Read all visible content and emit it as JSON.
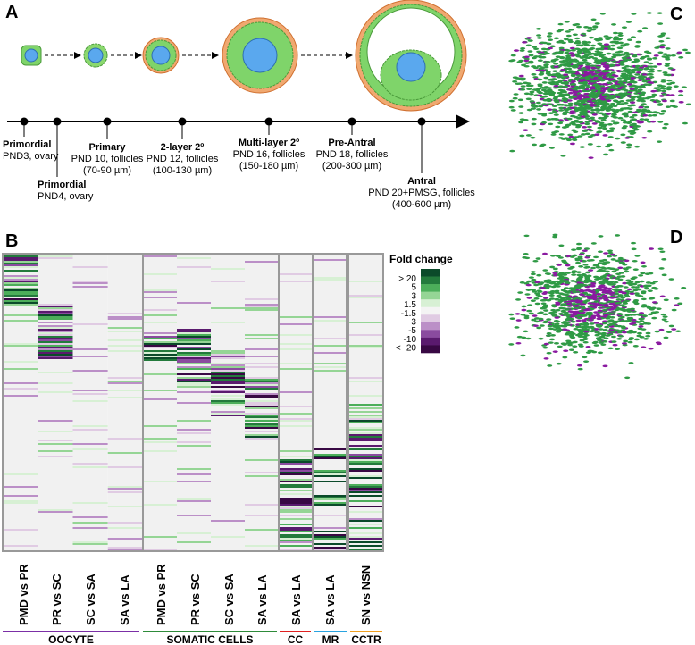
{
  "panels": {
    "a": "A",
    "b": "B",
    "c": "C",
    "d": "D"
  },
  "timeline": [
    {
      "name": "Primordial",
      "lines": [
        "PND3, ovary"
      ]
    },
    {
      "name": "Primordial",
      "lines": [
        "PND4, ovary"
      ]
    },
    {
      "name": "Primary",
      "lines": [
        "PND 10, follicles",
        "(70-90 µm)"
      ]
    },
    {
      "name": "2-layer 2º",
      "lines": [
        "PND 12, follicles",
        "(100-130 µm)"
      ]
    },
    {
      "name": "Multi-layer 2º",
      "lines": [
        "PND 16, follicles",
        "(150-180 µm)"
      ]
    },
    {
      "name": "Pre-Antral",
      "lines": [
        "PND 18, follicles",
        "(200-300 µm)"
      ]
    },
    {
      "name": "Antral",
      "lines": [
        "PND 20+PMSG, follicles",
        "(400-600 µm)"
      ]
    }
  ],
  "legend": {
    "title": "Fold change",
    "labels": [
      "> 20",
      "5",
      "3",
      "1.5",
      "-1.5",
      "-3",
      "-5",
      "-10",
      "< -20"
    ],
    "colors": [
      "#0b4a2a",
      "#237a3c",
      "#4cae5a",
      "#95d595",
      "#d7f0d4",
      "#f4f4f4",
      "#e0cbe3",
      "#bb8fc7",
      "#8a4b9f",
      "#5a1a6e",
      "#380843"
    ]
  },
  "heatmap": {
    "columns": [
      "PMD vs PR",
      "PR vs SC",
      "SC vs SA",
      "SA vs LA",
      "PMD vs PR",
      "PR vs SC",
      "SC vs SA",
      "SA vs LA",
      "SA vs LA",
      "SA vs LA",
      "SN vs  NSN"
    ],
    "groups": [
      {
        "name": "OOCYTE",
        "color": "#7b2fa6"
      },
      {
        "name": "SOMATIC CELLS",
        "color": "#2e8b3a"
      },
      {
        "name": "CC",
        "color": "#e02020"
      },
      {
        "name": "MR",
        "color": "#29a3e0"
      },
      {
        "name": "CCTR",
        "color": "#f0a020"
      }
    ]
  }
}
